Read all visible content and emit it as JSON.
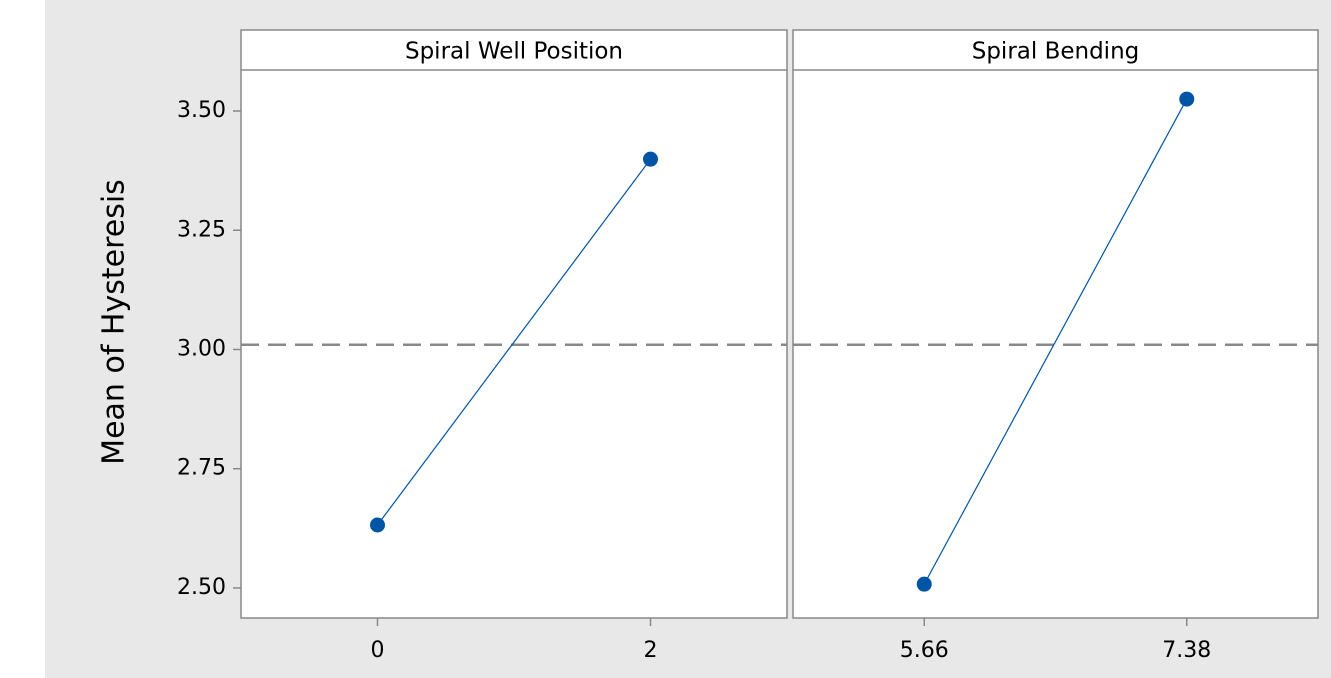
{
  "chart_data": [
    {
      "type": "line",
      "title": "Spiral Well Position",
      "categories": [
        "0",
        "2"
      ],
      "series": [
        {
          "color": "#0054a6",
          "values": [
            2.632,
            3.399
          ]
        }
      ],
      "ylabel": "Mean of Hysteresis",
      "ylim": [
        2.437,
        3.586
      ],
      "yticks": [
        {
          "value": 2.5,
          "label": "2.50"
        },
        {
          "value": 2.75,
          "label": "2.75"
        },
        {
          "value": 3.0,
          "label": "3.00"
        },
        {
          "value": 3.25,
          "label": "3.25"
        },
        {
          "value": 3.5,
          "label": "3.50"
        }
      ],
      "reference_line": 3.01
    },
    {
      "type": "line",
      "title": "Spiral Bending",
      "categories": [
        "5.66",
        "7.38"
      ],
      "series": [
        {
          "color": "#0054a6",
          "values": [
            2.508,
            3.525
          ]
        }
      ]
    }
  ]
}
